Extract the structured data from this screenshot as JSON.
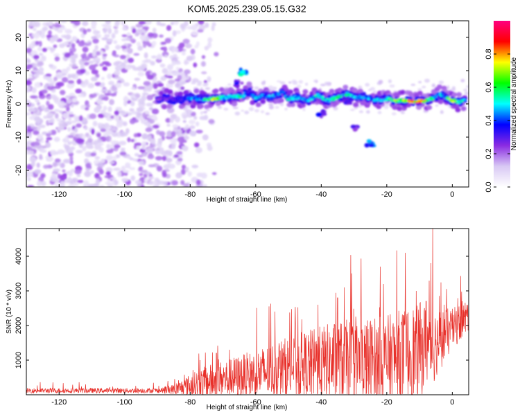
{
  "title": "KOM5.2025.239.05.15.G32",
  "chart_data": [
    {
      "type": "heatmap",
      "title": "KOM5.2025.239.05.15.G32",
      "xlabel": "Height of straight line (km)",
      "ylabel": "Frequency (Hz)",
      "xlim": [
        -130,
        5
      ],
      "ylim": [
        -25,
        25
      ],
      "xticks": [
        -120,
        -100,
        -80,
        -60,
        -40,
        -20,
        0
      ],
      "yticks": [
        -20,
        -10,
        0,
        10,
        20
      ],
      "colorbar": {
        "label": "Normalized spectral amplitude",
        "range": [
          0,
          1
        ],
        "ticks": [
          "0.0",
          "0.2",
          "0.4",
          "0.6",
          "0.8"
        ],
        "colors": [
          "#ffffff",
          "#d8c8f4",
          "#8a2be2",
          "#0000ff",
          "#00ffff",
          "#00ff00",
          "#ffff00",
          "#ff0000",
          "#ff0080"
        ]
      },
      "noise_region_km": [
        -130,
        -80
      ],
      "signal_band": [
        {
          "x": -90,
          "f": 1.5,
          "a": 0.25
        },
        {
          "x": -87,
          "f": 1.6,
          "a": 0.3
        },
        {
          "x": -84,
          "f": 1.2,
          "a": 0.35
        },
        {
          "x": -80,
          "f": 1.8,
          "a": 0.45
        },
        {
          "x": -76,
          "f": 1.5,
          "a": 0.5
        },
        {
          "x": -73,
          "f": 1.5,
          "a": 0.75
        },
        {
          "x": -70,
          "f": 2.0,
          "a": 0.55
        },
        {
          "x": -67,
          "f": 2.2,
          "a": 0.5
        },
        {
          "x": -64,
          "f": 2.3,
          "a": 0.55
        },
        {
          "x": -62,
          "f": 4.0,
          "a": 0.3
        },
        {
          "x": -60,
          "f": 1.8,
          "a": 0.5
        },
        {
          "x": -58,
          "f": 2.5,
          "a": 0.45
        },
        {
          "x": -55,
          "f": 2.0,
          "a": 0.5
        },
        {
          "x": -52,
          "f": 3.5,
          "a": 0.4
        },
        {
          "x": -50,
          "f": 1.5,
          "a": 0.55
        },
        {
          "x": -47,
          "f": 2.0,
          "a": 0.5
        },
        {
          "x": -44,
          "f": 1.0,
          "a": 0.45
        },
        {
          "x": -41,
          "f": 2.5,
          "a": 0.55
        },
        {
          "x": -38,
          "f": 1.0,
          "a": 0.5
        },
        {
          "x": -35,
          "f": 2.0,
          "a": 0.6
        },
        {
          "x": -32,
          "f": 3.0,
          "a": 0.55
        },
        {
          "x": -29,
          "f": 2.0,
          "a": 0.5
        },
        {
          "x": -26,
          "f": 2.0,
          "a": 0.45
        },
        {
          "x": -23,
          "f": 1.0,
          "a": 0.5
        },
        {
          "x": -20,
          "f": 1.5,
          "a": 0.55
        },
        {
          "x": -17,
          "f": 1.0,
          "a": 0.7
        },
        {
          "x": -15,
          "f": 1.0,
          "a": 0.75
        },
        {
          "x": -12,
          "f": 0.8,
          "a": 0.85
        },
        {
          "x": -9,
          "f": 0.8,
          "a": 0.85
        },
        {
          "x": -6,
          "f": 1.5,
          "a": 0.6
        },
        {
          "x": -4,
          "f": 3.0,
          "a": 0.5
        },
        {
          "x": -2,
          "f": 2.0,
          "a": 0.5
        },
        {
          "x": 0,
          "f": 1.0,
          "a": 0.85
        },
        {
          "x": 2,
          "f": 0.5,
          "a": 0.55
        },
        {
          "x": 4,
          "f": 1.0,
          "a": 0.5
        }
      ],
      "extra_features": [
        {
          "x": -64,
          "f": 9.5,
          "a": 0.55
        },
        {
          "x": -65,
          "f": 6.0,
          "a": 0.35
        },
        {
          "x": -30,
          "f": -7.5,
          "a": 0.3
        },
        {
          "x": -25,
          "f": -12.0,
          "a": 0.45
        },
        {
          "x": -32,
          "f": 1.0,
          "a": 0.4
        },
        {
          "x": -40,
          "f": -3.0,
          "a": 0.35
        }
      ]
    },
    {
      "type": "line",
      "xlabel": "Height of straight line (km)",
      "ylabel": "SNR (10 * v/v)",
      "xlim": [
        -130,
        5
      ],
      "ylim": [
        0,
        4800
      ],
      "xticks": [
        -120,
        -100,
        -80,
        -60,
        -40,
        -20,
        0
      ],
      "yticks": [
        1000,
        2000,
        3000,
        4000
      ],
      "color": "#e8302a",
      "envelope": [
        {
          "x": -130,
          "base": 120,
          "amp": 120
        },
        {
          "x": -90,
          "base": 120,
          "amp": 120
        },
        {
          "x": -85,
          "base": 150,
          "amp": 150
        },
        {
          "x": -80,
          "base": 250,
          "amp": 350
        },
        {
          "x": -75,
          "base": 350,
          "amp": 500
        },
        {
          "x": -70,
          "base": 450,
          "amp": 550
        },
        {
          "x": -65,
          "base": 500,
          "amp": 650
        },
        {
          "x": -60,
          "base": 600,
          "amp": 700
        },
        {
          "x": -55,
          "base": 700,
          "amp": 800
        },
        {
          "x": -50,
          "base": 800,
          "amp": 900
        },
        {
          "x": -45,
          "base": 850,
          "amp": 1000
        },
        {
          "x": -40,
          "base": 900,
          "amp": 1100
        },
        {
          "x": -35,
          "base": 950,
          "amp": 1200
        },
        {
          "x": -30,
          "base": 900,
          "amp": 1300
        },
        {
          "x": -25,
          "base": 950,
          "amp": 1300
        },
        {
          "x": -20,
          "base": 1000,
          "amp": 1300
        },
        {
          "x": -15,
          "base": 1100,
          "amp": 1400
        },
        {
          "x": -10,
          "base": 1300,
          "amp": 1400
        },
        {
          "x": -5,
          "base": 1500,
          "amp": 1000
        },
        {
          "x": 0,
          "base": 1900,
          "amp": 600
        },
        {
          "x": 5,
          "base": 2300,
          "amp": 500
        }
      ],
      "peaks": [
        {
          "x": -77,
          "y": 1000
        },
        {
          "x": -72,
          "y": 1200
        },
        {
          "x": -68,
          "y": 1300
        },
        {
          "x": -48,
          "y": 2200
        },
        {
          "x": -41,
          "y": 2600
        },
        {
          "x": -35,
          "y": 2800
        },
        {
          "x": -33,
          "y": 3100
        },
        {
          "x": -27,
          "y": 2900
        },
        {
          "x": -22,
          "y": 3700
        },
        {
          "x": -21,
          "y": 3200
        },
        {
          "x": -15,
          "y": 2300
        },
        {
          "x": -11,
          "y": 3000
        },
        {
          "x": -8,
          "y": 2700
        },
        {
          "x": -6.5,
          "y": 3800
        },
        {
          "x": -6,
          "y": 4800
        },
        {
          "x": -5.5,
          "y": 3500
        },
        {
          "x": -2.5,
          "y": 2600
        },
        {
          "x": 3,
          "y": 2700
        },
        {
          "x": 5,
          "y": 2750
        }
      ],
      "dips": [
        {
          "x": -21.5,
          "y": 300
        },
        {
          "x": -5.5,
          "y": 400
        },
        {
          "x": -27,
          "y": 200
        }
      ]
    }
  ]
}
